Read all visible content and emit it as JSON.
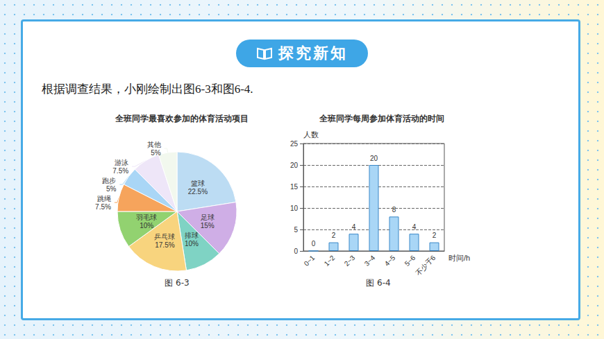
{
  "header": {
    "title": "探究新知"
  },
  "intro": "根据调查结果，小刚绘制出图6-3和图6-4.",
  "chart_data": [
    {
      "type": "pie",
      "title": "全班同学最喜欢参加的体育活动项目",
      "caption": "图 6-3",
      "categories": [
        "篮球",
        "足球",
        "排球",
        "乒乓球",
        "羽毛球",
        "跳绳",
        "跑步",
        "游泳",
        "其他"
      ],
      "values": [
        22.5,
        15,
        10,
        17.5,
        10,
        7.5,
        5,
        7.5,
        5
      ],
      "value_labels": [
        "22.5%",
        "15%",
        "10%",
        "17.5%",
        "10%",
        "7.5%",
        "5%",
        "7.5%",
        "5%"
      ],
      "colors": [
        "#bcdcf3",
        "#cfaee6",
        "#7fd3c4",
        "#f8d47e",
        "#92d270",
        "#f6a45c",
        "#a9d6f6",
        "#eee6f8",
        "#f2f8ee"
      ],
      "data_labels": true
    },
    {
      "type": "bar",
      "title": "全班同学每周参加体育活动的时间",
      "caption": "图 6-4",
      "categories": [
        "0~1",
        "1~2",
        "2~3",
        "3~4",
        "4~5",
        "5~6",
        "不少于6"
      ],
      "values": [
        0,
        2,
        4,
        20,
        8,
        4,
        2
      ],
      "color": "#a9d6f6",
      "x_label": "时间/h",
      "y_label": "人数",
      "ylim": [
        0,
        25
      ],
      "yticks": [
        0,
        5,
        10,
        15,
        20,
        25
      ],
      "grid": true,
      "data_labels": true
    }
  ]
}
